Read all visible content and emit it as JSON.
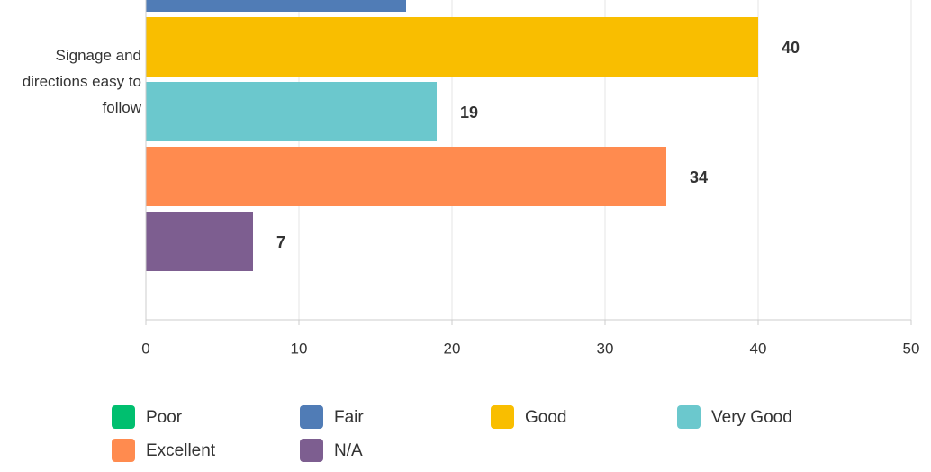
{
  "chart_data": {
    "type": "barh",
    "categories": [
      "Signage and directions easy to follow"
    ],
    "series": [
      {
        "name": "Poor",
        "color": "#00bf6f",
        "values": [
          null
        ]
      },
      {
        "name": "Fair",
        "color": "#507cb6",
        "values": [
          17
        ]
      },
      {
        "name": "Good",
        "color": "#f9be00",
        "values": [
          40
        ]
      },
      {
        "name": "Very Good",
        "color": "#6bc8cd",
        "values": [
          19
        ]
      },
      {
        "name": "Excellent",
        "color": "#ff8b4f",
        "values": [
          34
        ]
      },
      {
        "name": "N/A",
        "color": "#7d5e90",
        "values": [
          7
        ]
      }
    ],
    "xlim": [
      0,
      50
    ],
    "xticks": [
      0,
      10,
      20,
      30,
      40,
      50
    ],
    "grid": true
  }
}
